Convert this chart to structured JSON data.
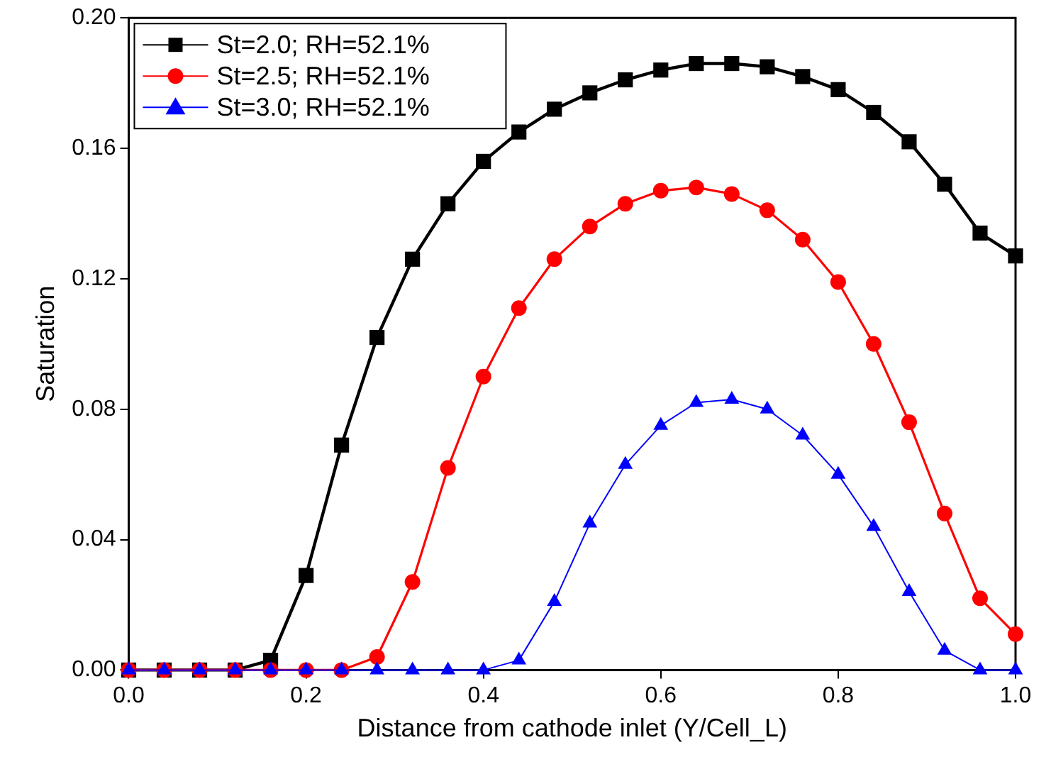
{
  "chart_data": {
    "type": "line",
    "xlabel": "Distance from cathode inlet (Y/Cell_L)",
    "ylabel": "Saturation",
    "x": [
      0,
      0.04,
      0.08,
      0.12,
      0.16,
      0.2,
      0.24,
      0.28,
      0.32,
      0.36,
      0.4,
      0.44,
      0.48,
      0.52,
      0.56,
      0.6,
      0.64,
      0.68,
      0.72,
      0.76,
      0.8,
      0.84,
      0.88,
      0.92,
      0.96,
      1.0
    ],
    "series": [
      {
        "name": "St=2.0; RH=52.1%",
        "color": "#000000",
        "marker": "square",
        "values": [
          0,
          0,
          0,
          0,
          0.003,
          0.029,
          0.069,
          0.102,
          0.126,
          0.143,
          0.156,
          0.165,
          0.172,
          0.177,
          0.181,
          0.184,
          0.186,
          0.186,
          0.185,
          0.182,
          0.178,
          0.171,
          0.162,
          0.149,
          0.134,
          0.127
        ]
      },
      {
        "name": "St=2.5; RH=52.1%",
        "color": "#ff0000",
        "marker": "circle",
        "values": [
          0,
          0,
          0,
          0,
          0,
          0,
          0,
          0.004,
          0.027,
          0.062,
          0.09,
          0.111,
          0.126,
          0.136,
          0.143,
          0.147,
          0.148,
          0.146,
          0.141,
          0.132,
          0.119,
          0.1,
          0.076,
          0.048,
          0.022,
          0.011
        ]
      },
      {
        "name": "St=3.0; RH=52.1%",
        "color": "#0000ff",
        "marker": "triangle",
        "values": [
          0,
          0,
          0,
          0,
          0,
          0,
          0,
          0,
          0,
          0,
          0,
          0.003,
          0.021,
          0.045,
          0.063,
          0.075,
          0.082,
          0.083,
          0.08,
          0.072,
          0.06,
          0.044,
          0.024,
          0.006,
          0,
          0
        ]
      }
    ],
    "xlim": [
      0,
      1.0
    ],
    "xticks": [
      {
        "value": 0,
        "label": "0.0"
      },
      0.2,
      0.4,
      0.6,
      0.8,
      {
        "value": 1,
        "label": "1.0"
      }
    ],
    "ylim": [
      0,
      0.2
    ],
    "yticks": [
      {
        "value": 0,
        "label": "0.00"
      },
      0.04,
      0.08,
      0.12,
      0.16,
      {
        "value": 0.2,
        "label": "0.20"
      }
    ],
    "grid": false,
    "legend": "top left",
    "line_style": "solid"
  }
}
